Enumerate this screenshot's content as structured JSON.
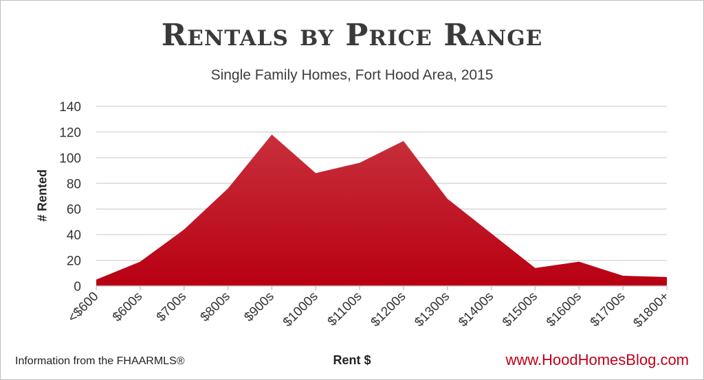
{
  "chart_data": {
    "type": "area",
    "title": "Rentals by Price Range",
    "subtitle": "Single Family Homes, Fort Hood Area, 2015",
    "xlabel": "Rent $",
    "ylabel": "# Rented",
    "categories": [
      "<$600",
      "$600s",
      "$700s",
      "$800s",
      "$900s",
      "$1000s",
      "$1100s",
      "$1200s",
      "$1300s",
      "$1400s",
      "$1500s",
      "$1600s",
      "$1700s",
      "$1800+"
    ],
    "series": [
      {
        "values": [
          5,
          19,
          44,
          76,
          118,
          88,
          96,
          113,
          68,
          41,
          14,
          19,
          8,
          7
        ]
      }
    ],
    "ylim": [
      0,
      140
    ],
    "yticks": [
      0,
      20,
      40,
      60,
      80,
      100,
      120,
      140
    ],
    "grid": true,
    "fill_color_top": "#c8303c",
    "fill_color_bottom": "#b80012"
  },
  "footer": {
    "source": "Information from the FHAARMLS®",
    "website": "www.HoodHomesBlog.com"
  }
}
